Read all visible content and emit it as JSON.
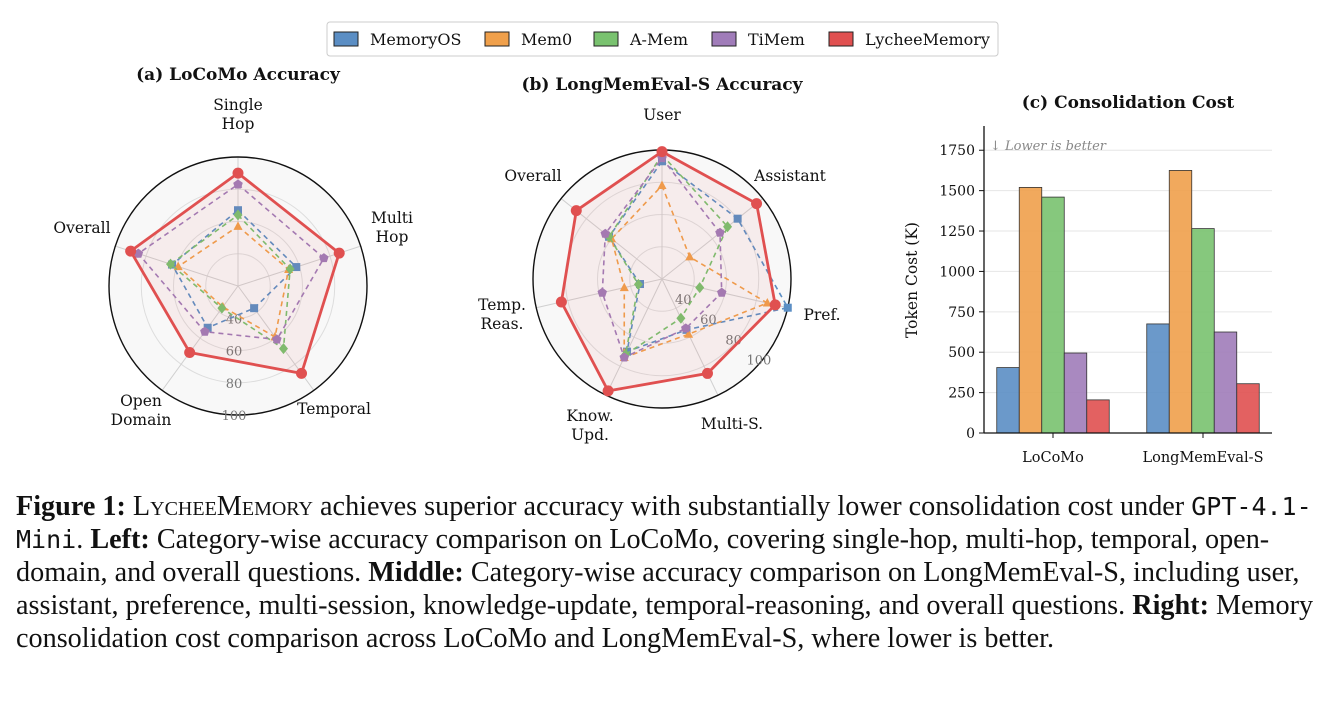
{
  "legend": [
    {
      "name": "MemoryOS",
      "color": "#5b8ec4"
    },
    {
      "name": "Mem0",
      "color": "#f0a04b"
    },
    {
      "name": "A-Mem",
      "color": "#79c26f"
    },
    {
      "name": "TiMem",
      "color": "#a07cb9"
    },
    {
      "name": "LycheeMemory",
      "color": "#e05050"
    }
  ],
  "chart_data": [
    {
      "type": "radar",
      "title": "(a) LoCoMo Accuracy",
      "axes": [
        "Single\nHop",
        "Multi\nHop",
        "Temporal",
        "Open\nDomain",
        "Overall"
      ],
      "rlim": [
        20,
        100
      ],
      "rticks": [
        40,
        60,
        80,
        100
      ],
      "series": [
        {
          "name": "MemoryOS",
          "values": [
            67,
            58,
            37,
            52,
            63
          ]
        },
        {
          "name": "Mem0",
          "values": [
            57,
            53,
            59,
            36,
            59
          ]
        },
        {
          "name": "A-Mem",
          "values": [
            64,
            54,
            68,
            37,
            64
          ]
        },
        {
          "name": "TiMem",
          "values": [
            83,
            76,
            61,
            55,
            85
          ]
        },
        {
          "name": "LycheeMemory",
          "values": [
            90,
            86,
            87,
            71,
            90
          ]
        }
      ]
    },
    {
      "type": "radar",
      "title": "(b) LongMemEval-S Accuracy",
      "axes": [
        "User",
        "Assistant",
        "Pref.",
        "Multi-S.",
        "Know.\nUpd.",
        "Temp.\nReas.",
        "Overall"
      ],
      "rlim": [
        20,
        100
      ],
      "rticks": [
        40,
        60,
        80,
        100
      ],
      "series": [
        {
          "name": "MemoryOS",
          "values": [
            93,
            80,
            100,
            55,
            70,
            34,
            62
          ]
        },
        {
          "name": "Mem0",
          "values": [
            78,
            42,
            87,
            58,
            74,
            44,
            60
          ]
        },
        {
          "name": "A-Mem",
          "values": [
            97,
            72,
            44,
            47,
            72,
            35,
            62
          ]
        },
        {
          "name": "TiMem",
          "values": [
            95,
            66,
            58,
            54,
            74,
            58,
            65
          ]
        },
        {
          "name": "LycheeMemory",
          "values": [
            99,
            95,
            92,
            85,
            97,
            84,
            88
          ]
        }
      ]
    },
    {
      "type": "bar",
      "title": "(c) Consolidation Cost",
      "categories": [
        "LoCoMo",
        "LongMemEval-S"
      ],
      "ylabel": "Token Cost (K)",
      "ylim": [
        0,
        1900
      ],
      "yticks": [
        0,
        250,
        500,
        750,
        1000,
        1250,
        1500,
        1750
      ],
      "annotation": "↓ Lower is better",
      "series": [
        {
          "name": "MemoryOS",
          "values": [
            405,
            675
          ]
        },
        {
          "name": "Mem0",
          "values": [
            1520,
            1625
          ]
        },
        {
          "name": "A-Mem",
          "values": [
            1460,
            1265
          ]
        },
        {
          "name": "TiMem",
          "values": [
            495,
            625
          ]
        },
        {
          "name": "LycheeMemory",
          "values": [
            205,
            305
          ]
        }
      ]
    }
  ],
  "caption": {
    "label": "Figure 1:",
    "name": "LycheeMemory",
    "text1": " achieves superior accuracy with substantially lower consolidation cost under ",
    "model": "GPT-4.1-Mini",
    "text2": ". ",
    "left_label": "Left:",
    "left_text": " Category-wise accuracy comparison on LoCoMo, covering single-hop, multi-hop, temporal, open-domain, and overall questions. ",
    "middle_label": "Middle:",
    "middle_text": " Category-wise accuracy comparison on LongMemEval-S, including user, assistant, preference, multi-session, knowledge-update, temporal-reasoning, and overall questions. ",
    "right_label": "Right:",
    "right_text": " Memory consolidation cost comparison across LoCoMo and LongMemEval-S, where lower is better."
  }
}
